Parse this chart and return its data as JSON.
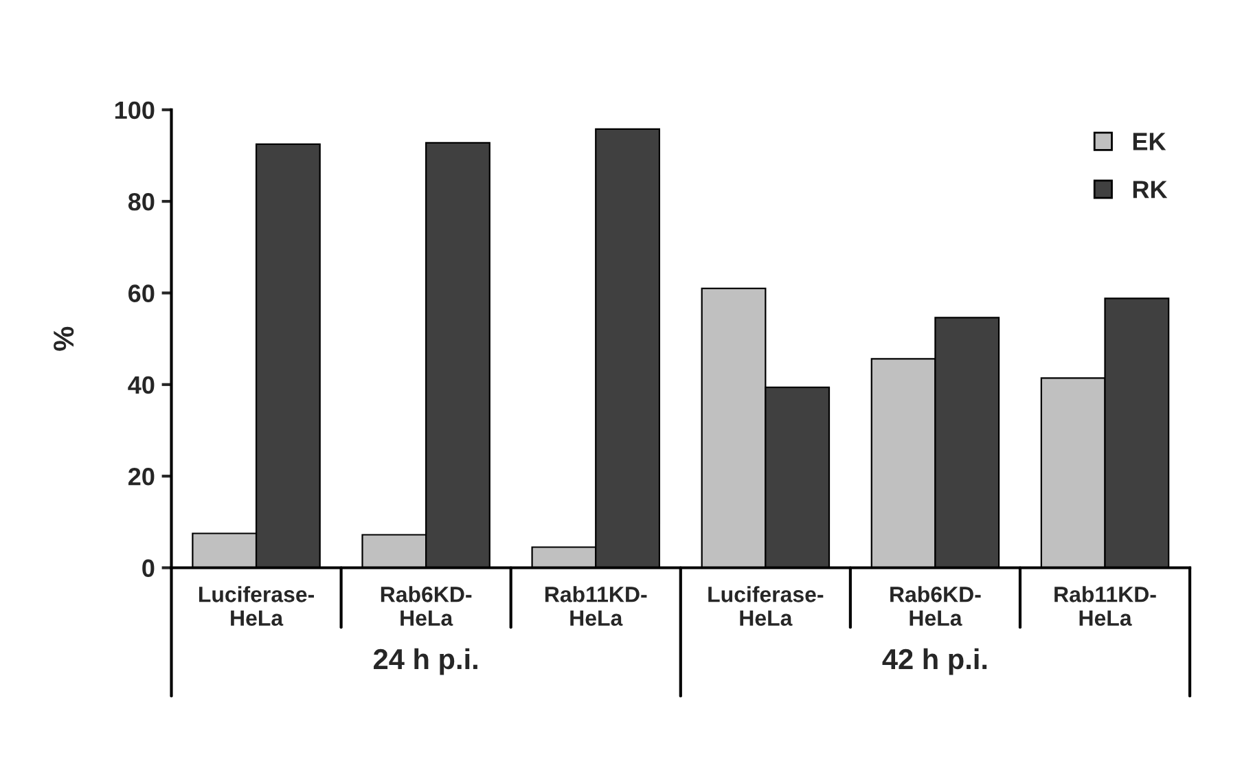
{
  "chart_data": {
    "type": "bar",
    "ylabel": "%",
    "categories": [
      "Luciferase-\nHeLa",
      "Rab6KD-\nHeLa",
      "Rab11KD-\nHeLa",
      "Luciferase-\nHeLa",
      "Rab6KD-\nHeLa",
      "Rab11KD-\nHeLa"
    ],
    "series": [
      {
        "name": "EK",
        "color": "#c0c0c0",
        "values": [
          7.5,
          7.2,
          4.5,
          61,
          45.6,
          41.4
        ]
      },
      {
        "name": "RK",
        "color": "#404040",
        "values": [
          92.5,
          92.8,
          95.8,
          39.4,
          54.6,
          58.8
        ]
      }
    ],
    "ylim": [
      0,
      100
    ],
    "yticks": [
      0,
      20,
      40,
      60,
      80,
      100
    ],
    "grid": false,
    "legend": "top right",
    "annotations": [
      "24 h p.i.",
      "42 h p.i."
    ]
  }
}
